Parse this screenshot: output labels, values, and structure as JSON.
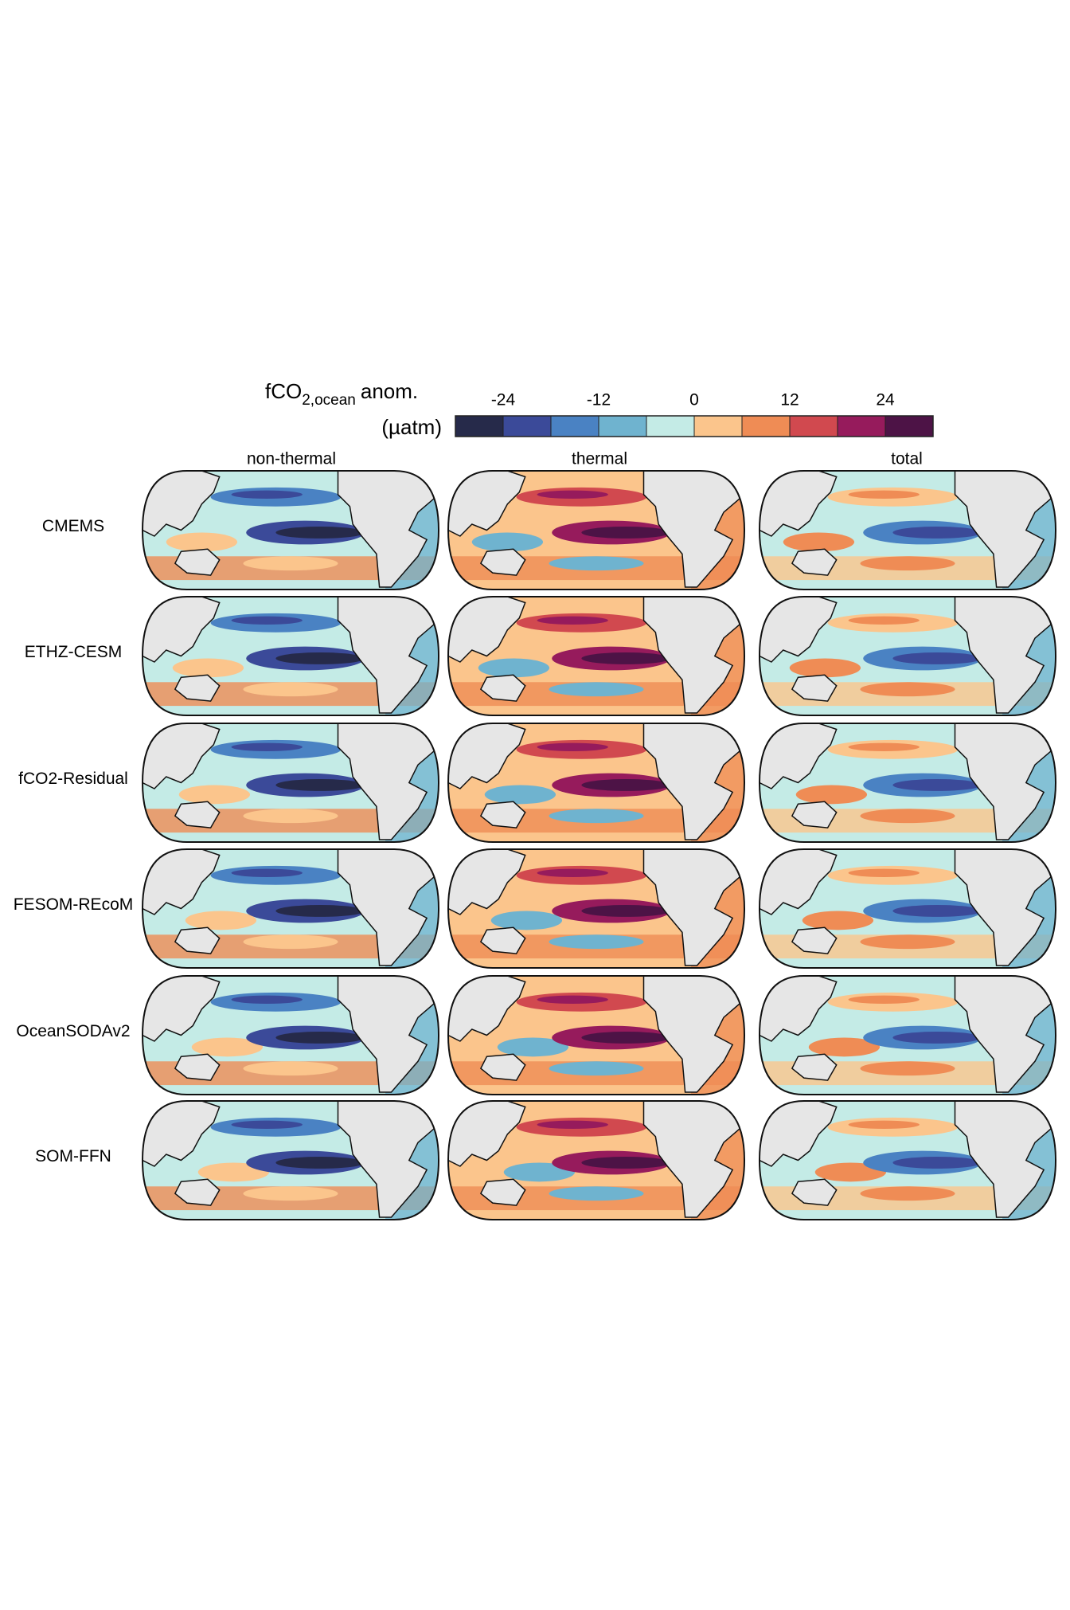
{
  "legend": {
    "title_main": "fCO",
    "title_sub": "2,ocean",
    "title_end": "anom.",
    "unit": "(µatm)",
    "lim": [
      -30,
      30
    ],
    "ticks": [
      -24,
      -12,
      0,
      12,
      24
    ],
    "bins": [
      -30,
      -24,
      -18,
      -12,
      -6,
      0,
      6,
      12,
      18,
      24,
      30
    ],
    "colors": [
      "#262a4a",
      "#3b4a99",
      "#4a82c3",
      "#6fb3cf",
      "#c4ebe6",
      "#fbc58c",
      "#ef8c55",
      "#d1494f",
      "#961b5c",
      "#4d1346"
    ]
  },
  "columns": [
    "non-thermal",
    "thermal",
    "total"
  ],
  "rows": [
    "CMEMS",
    "ETHZ-CESM",
    "fCO2-Residual",
    "FESOM-REcoM",
    "OceanSODAv2",
    "SOM-FFN"
  ]
}
